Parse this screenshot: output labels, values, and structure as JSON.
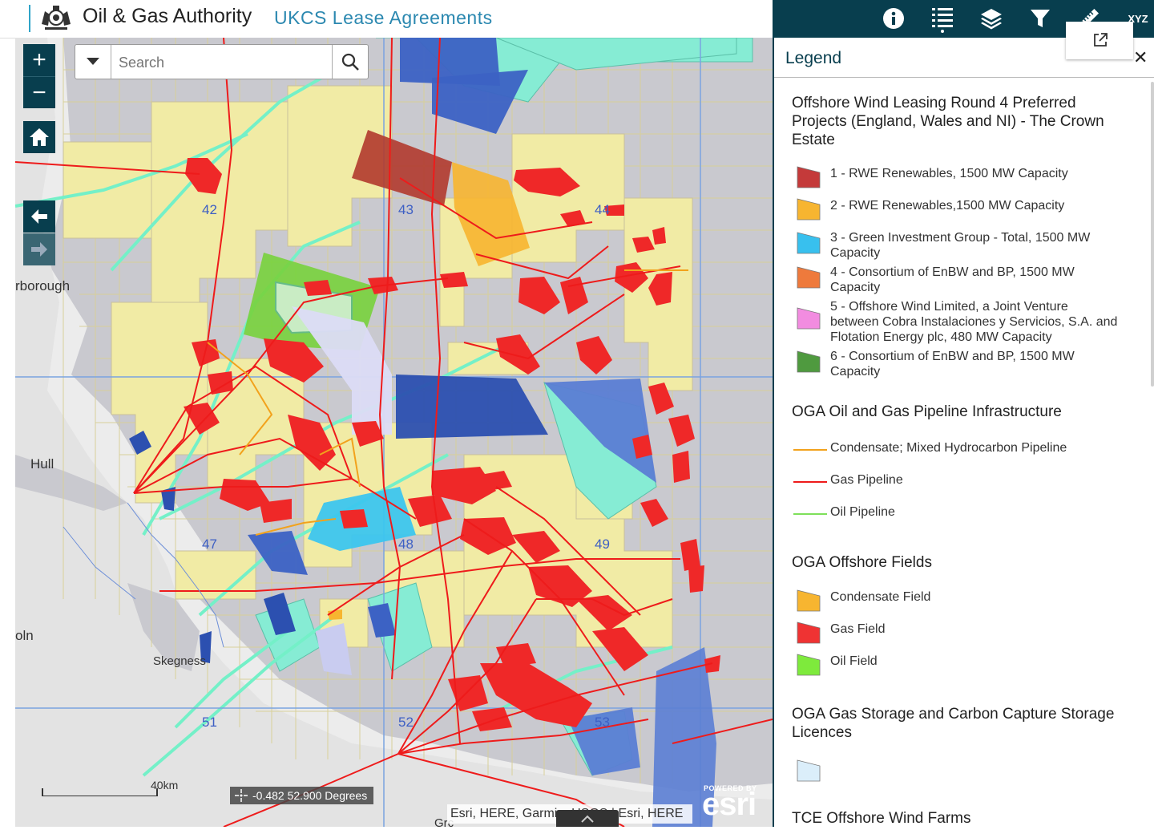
{
  "header": {
    "org_name": "Oil & Gas Authority",
    "app_title": "UKCS Lease Agreements"
  },
  "toolbar": {
    "items": [
      {
        "icon": "info-icon"
      },
      {
        "icon": "legend-list-icon"
      },
      {
        "icon": "layers-icon"
      },
      {
        "icon": "filter-icon"
      },
      {
        "icon": "measure-icon"
      },
      {
        "icon": "coordinate-xyz-icon",
        "label": "XYZ"
      }
    ]
  },
  "search": {
    "placeholder": "Search"
  },
  "map": {
    "places": [
      "rborough",
      "Hull",
      "oln",
      "Skegness",
      "Grc"
    ],
    "block_numbers": [
      "42",
      "43",
      "44",
      "47",
      "48",
      "49",
      "51",
      "52",
      "53"
    ],
    "coordinates": "-0.482 52.900 Degrees",
    "scale_label": "40km",
    "attribution": "Esri, HERE, Garmin, USGS | Esri, HERE",
    "powered_by": "POWERED BY",
    "esri_logo": "esri"
  },
  "legend": {
    "title": "Legend",
    "sections": [
      {
        "heading": "Offshore Wind Leasing Round 4 Preferred Projects (England, Wales and NI) - The Crown Estate",
        "items": [
          {
            "label": "1 - RWE Renewables, 1500 MW Capacity",
            "color": "#c43a3a"
          },
          {
            "label": "2 - RWE Renewables,1500 MW Capacity",
            "color": "#f7b530"
          },
          {
            "label": "3 - Green Investment Group - Total, 1500 MW Capacity",
            "color": "#38c0ee"
          },
          {
            "label": "4 - Consortium of EnBW and BP, 1500 MW Capacity",
            "color": "#ee7a3c"
          },
          {
            "label": "5 - Offshore Wind Limited, a Joint Venture between Cobra Instalaciones y Servicios, S.A. and Flotation Energy plc, 480 MW Capacity",
            "color": "#f28ce0"
          },
          {
            "label": "6 - Consortium of EnBW and BP, 1500 MW Capacity",
            "color": "#4f9a3f"
          }
        ]
      },
      {
        "heading": "OGA Oil and Gas Pipeline Infrastructure",
        "items": [
          {
            "label": "Condensate; Mixed Hydrocarbon Pipeline",
            "color": "#f2a21c"
          },
          {
            "label": "Gas Pipeline",
            "color": "#ee1b1b"
          },
          {
            "label": "Oil Pipeline",
            "color": "#7ee05a"
          }
        ]
      },
      {
        "heading": "OGA Offshore Fields",
        "items": [
          {
            "label": "Condensate Field",
            "color": "#f7b530"
          },
          {
            "label": "Gas Field",
            "color": "#ef3333"
          },
          {
            "label": "Oil Field",
            "color": "#7eea3c"
          }
        ]
      },
      {
        "heading": "OGA Gas Storage and Carbon Capture Storage Licences",
        "items": [
          {
            "label": "",
            "color": "#dbeefa"
          }
        ]
      },
      {
        "heading": "TCE Offshore Wind Farms",
        "items": []
      }
    ]
  }
}
